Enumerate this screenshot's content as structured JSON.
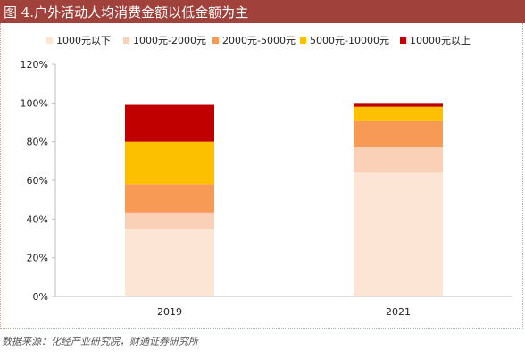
{
  "header": {
    "title": "图 4.户外活动人均消费金额以低金额为主"
  },
  "source": {
    "text": "数据来源：化经产业研究院，财通证券研究所"
  },
  "colors": {
    "header_bg": "#a0413b",
    "axis": "#bfbfbf"
  },
  "chart_data": {
    "type": "bar",
    "stacked": true,
    "title": "",
    "xlabel": "",
    "ylabel": "",
    "categories": [
      "2019",
      "2021"
    ],
    "ylim": [
      0,
      120
    ],
    "yticks": [
      0,
      20,
      40,
      60,
      80,
      100,
      120
    ],
    "ytick_labels": [
      "0%",
      "20%",
      "40%",
      "60%",
      "80%",
      "100%",
      "120%"
    ],
    "grid": false,
    "legend_position": "top",
    "series": [
      {
        "name": "1000元以下",
        "color": "#fde5d6",
        "values": [
          35,
          64
        ]
      },
      {
        "name": "1000元-2000元",
        "color": "#fad1b7",
        "values": [
          8,
          13
        ]
      },
      {
        "name": "2000元-5000元",
        "color": "#f79a55",
        "values": [
          15,
          14
        ]
      },
      {
        "name": "5000元-10000元",
        "color": "#fcc000",
        "values": [
          22,
          7
        ]
      },
      {
        "name": "10000元以上",
        "color": "#c00000",
        "values": [
          19,
          2
        ]
      }
    ]
  }
}
